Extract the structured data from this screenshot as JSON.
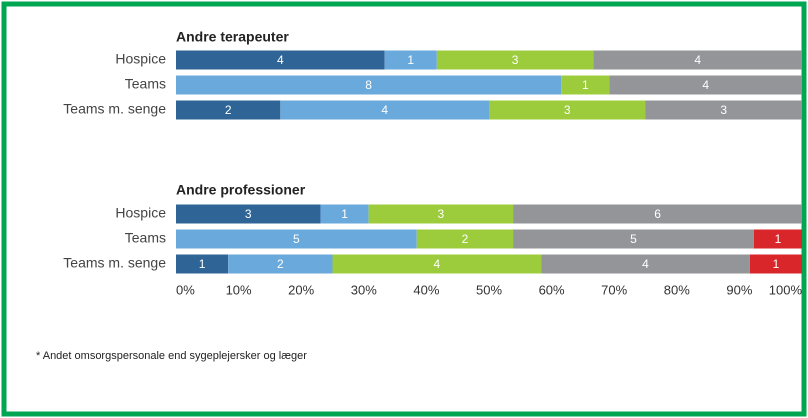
{
  "chart_data": [
    {
      "type": "bar",
      "stacked": "percent",
      "orientation": "horizontal",
      "title": "Andre terapeuter",
      "categories": [
        "Hospice",
        "Teams",
        "Teams m. senge"
      ],
      "series": [
        {
          "color": "#2e6496",
          "values": [
            4,
            null,
            2
          ]
        },
        {
          "color": "#6aa9dc",
          "values": [
            1,
            8,
            4
          ]
        },
        {
          "color": "#9ccc3c",
          "values": [
            3,
            1,
            3
          ]
        },
        {
          "color": "#939598",
          "values": [
            4,
            4,
            3
          ]
        }
      ]
    },
    {
      "type": "bar",
      "stacked": "percent",
      "orientation": "horizontal",
      "title": "Andre professioner",
      "categories": [
        "Hospice",
        "Teams",
        "Teams m. senge"
      ],
      "series": [
        {
          "color": "#2e6496",
          "values": [
            3,
            null,
            1
          ]
        },
        {
          "color": "#6aa9dc",
          "values": [
            1,
            5,
            2
          ]
        },
        {
          "color": "#9ccc3c",
          "values": [
            3,
            2,
            4
          ]
        },
        {
          "color": "#939598",
          "values": [
            6,
            5,
            4
          ]
        },
        {
          "color": "#d9262b",
          "values": [
            null,
            1,
            1
          ]
        }
      ],
      "xlim": [
        0,
        100
      ],
      "xticks": [
        {
          "value": 0,
          "label": "0%"
        },
        {
          "value": 10,
          "label": "10%"
        },
        {
          "value": 20,
          "label": "20%"
        },
        {
          "value": 30,
          "label": "30%"
        },
        {
          "value": 40,
          "label": "40%"
        },
        {
          "value": 50,
          "label": "50%"
        },
        {
          "value": 60,
          "label": "60%"
        },
        {
          "value": 70,
          "label": "70%"
        },
        {
          "value": 80,
          "label": "80%"
        },
        {
          "value": 90,
          "label": "90%"
        },
        {
          "value": 100,
          "label": "100%"
        }
      ]
    }
  ],
  "footnote": "* Andet omsorgspersonale end sygeplejersker og læger"
}
